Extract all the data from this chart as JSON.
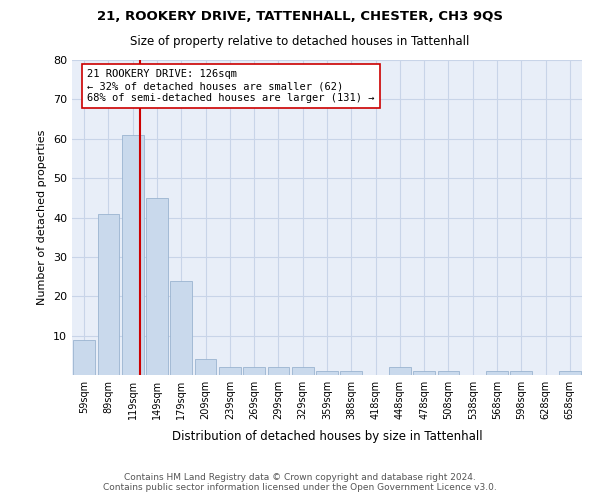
{
  "title": "21, ROOKERY DRIVE, TATTENHALL, CHESTER, CH3 9QS",
  "subtitle": "Size of property relative to detached houses in Tattenhall",
  "xlabel": "Distribution of detached houses by size in Tattenhall",
  "ylabel": "Number of detached properties",
  "categories": [
    "59sqm",
    "89sqm",
    "119sqm",
    "149sqm",
    "179sqm",
    "209sqm",
    "239sqm",
    "269sqm",
    "299sqm",
    "329sqm",
    "359sqm",
    "388sqm",
    "418sqm",
    "448sqm",
    "478sqm",
    "508sqm",
    "538sqm",
    "568sqm",
    "598sqm",
    "628sqm",
    "658sqm"
  ],
  "values": [
    9,
    41,
    61,
    45,
    24,
    4,
    2,
    2,
    2,
    2,
    1,
    1,
    0,
    2,
    1,
    1,
    0,
    1,
    1,
    0,
    1
  ],
  "bar_color": "#c9d9ec",
  "bar_edge_color": "#9ab4d0",
  "grid_color": "#c8d4e8",
  "background_color": "#e8eef8",
  "vline_color": "#cc0000",
  "annotation_text": "21 ROOKERY DRIVE: 126sqm\n← 32% of detached houses are smaller (62)\n68% of semi-detached houses are larger (131) →",
  "annotation_box_color": "#ffffff",
  "annotation_box_edge_color": "#cc0000",
  "ylim": [
    0,
    80
  ],
  "yticks": [
    0,
    10,
    20,
    30,
    40,
    50,
    60,
    70,
    80
  ],
  "footer_line1": "Contains HM Land Registry data © Crown copyright and database right 2024.",
  "footer_line2": "Contains public sector information licensed under the Open Government Licence v3.0."
}
